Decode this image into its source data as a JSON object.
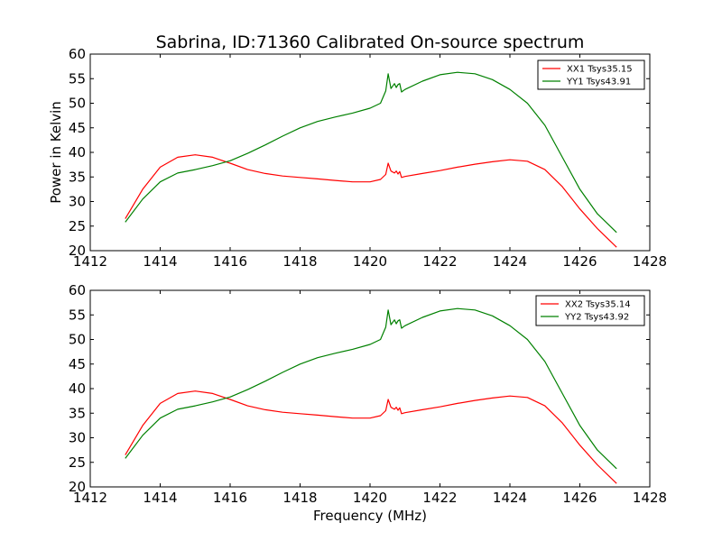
{
  "figure": {
    "title": "Sabrina, ID:71360 Calibrated On-source spectrum",
    "xlabel": "Frequency (MHz)",
    "ylabel": "Power in Kelvin"
  },
  "colors": {
    "xx": "#ff0000",
    "yy": "#008000",
    "axes": "#000000",
    "background": "#ffffff"
  },
  "chart_data": [
    {
      "type": "line",
      "title": "Sabrina, ID:71360 Calibrated On-source spectrum",
      "xlabel": "",
      "ylabel": "Power in Kelvin",
      "xlim": [
        1412,
        1428
      ],
      "ylim": [
        20,
        60
      ],
      "xticks": [
        "1412",
        "1414",
        "1416",
        "1418",
        "1420",
        "1422",
        "1424",
        "1426",
        "1428"
      ],
      "yticks": [
        "20",
        "25",
        "30",
        "35",
        "40",
        "45",
        "50",
        "55",
        "60"
      ],
      "grid": false,
      "legend_position": "top-right",
      "series": [
        {
          "name": "XX1 Tsys35.15",
          "color": "#ff0000",
          "x": [
            1413.0,
            1413.5,
            1414.0,
            1414.5,
            1415.0,
            1415.5,
            1416.0,
            1416.5,
            1417.0,
            1417.5,
            1418.0,
            1418.5,
            1419.0,
            1419.5,
            1420.0,
            1420.3,
            1420.45,
            1420.52,
            1420.6,
            1420.7,
            1420.75,
            1420.8,
            1420.85,
            1420.9,
            1421.0,
            1421.5,
            1422.0,
            1422.5,
            1423.0,
            1423.5,
            1424.0,
            1424.5,
            1425.0,
            1425.5,
            1426.0,
            1426.5,
            1427.05
          ],
          "y": [
            26.5,
            32.5,
            37.0,
            39.0,
            39.5,
            39.0,
            37.8,
            36.5,
            35.7,
            35.2,
            34.9,
            34.6,
            34.3,
            34.0,
            34.0,
            34.5,
            35.5,
            37.8,
            36.2,
            35.8,
            36.2,
            35.6,
            36.1,
            34.9,
            35.1,
            35.7,
            36.3,
            37.0,
            37.6,
            38.1,
            38.5,
            38.2,
            36.5,
            33.0,
            28.5,
            24.5,
            20.7
          ]
        },
        {
          "name": "YY1 Tsys43.91",
          "color": "#008000",
          "x": [
            1413.0,
            1413.5,
            1414.0,
            1414.5,
            1415.0,
            1415.5,
            1416.0,
            1416.5,
            1417.0,
            1417.5,
            1418.0,
            1418.5,
            1419.0,
            1419.5,
            1420.0,
            1420.3,
            1420.45,
            1420.52,
            1420.6,
            1420.7,
            1420.75,
            1420.8,
            1420.85,
            1420.9,
            1421.0,
            1421.5,
            1422.0,
            1422.5,
            1423.0,
            1423.5,
            1424.0,
            1424.5,
            1425.0,
            1425.5,
            1426.0,
            1426.5,
            1427.05
          ],
          "y": [
            25.8,
            30.5,
            34.0,
            35.8,
            36.5,
            37.3,
            38.3,
            39.8,
            41.5,
            43.3,
            45.0,
            46.3,
            47.2,
            48.0,
            49.0,
            50.0,
            52.5,
            56.0,
            53.0,
            54.0,
            53.2,
            53.8,
            54.0,
            52.3,
            52.8,
            54.5,
            55.8,
            56.3,
            56.0,
            54.8,
            52.8,
            50.0,
            45.5,
            39.0,
            32.5,
            27.5,
            23.7
          ]
        }
      ]
    },
    {
      "type": "line",
      "title": "",
      "xlabel": "Frequency (MHz)",
      "ylabel": "",
      "xlim": [
        1412,
        1428
      ],
      "ylim": [
        20,
        60
      ],
      "xticks": [
        "1412",
        "1414",
        "1416",
        "1418",
        "1420",
        "1422",
        "1424",
        "1426",
        "1428"
      ],
      "yticks": [
        "20",
        "25",
        "30",
        "35",
        "40",
        "45",
        "50",
        "55",
        "60"
      ],
      "grid": false,
      "legend_position": "top-right",
      "series": [
        {
          "name": "XX2 Tsys35.14",
          "color": "#ff0000",
          "x": [
            1413.0,
            1413.5,
            1414.0,
            1414.5,
            1415.0,
            1415.5,
            1416.0,
            1416.5,
            1417.0,
            1417.5,
            1418.0,
            1418.5,
            1419.0,
            1419.5,
            1420.0,
            1420.3,
            1420.45,
            1420.52,
            1420.6,
            1420.7,
            1420.75,
            1420.8,
            1420.85,
            1420.9,
            1421.0,
            1421.5,
            1422.0,
            1422.5,
            1423.0,
            1423.5,
            1424.0,
            1424.5,
            1425.0,
            1425.5,
            1426.0,
            1426.5,
            1427.05
          ],
          "y": [
            26.5,
            32.5,
            37.0,
            39.0,
            39.5,
            39.0,
            37.8,
            36.5,
            35.7,
            35.2,
            34.9,
            34.6,
            34.3,
            34.0,
            34.0,
            34.5,
            35.5,
            37.8,
            36.2,
            35.8,
            36.2,
            35.6,
            36.1,
            34.9,
            35.1,
            35.7,
            36.3,
            37.0,
            37.6,
            38.1,
            38.5,
            38.2,
            36.5,
            33.0,
            28.5,
            24.5,
            20.7
          ]
        },
        {
          "name": "YY2 Tsys43.92",
          "color": "#008000",
          "x": [
            1413.0,
            1413.5,
            1414.0,
            1414.5,
            1415.0,
            1415.5,
            1416.0,
            1416.5,
            1417.0,
            1417.5,
            1418.0,
            1418.5,
            1419.0,
            1419.5,
            1420.0,
            1420.3,
            1420.45,
            1420.52,
            1420.6,
            1420.7,
            1420.75,
            1420.8,
            1420.85,
            1420.9,
            1421.0,
            1421.5,
            1422.0,
            1422.5,
            1423.0,
            1423.5,
            1424.0,
            1424.5,
            1425.0,
            1425.5,
            1426.0,
            1426.5,
            1427.05
          ],
          "y": [
            25.8,
            30.5,
            34.0,
            35.8,
            36.5,
            37.3,
            38.3,
            39.8,
            41.5,
            43.3,
            45.0,
            46.3,
            47.2,
            48.0,
            49.0,
            50.0,
            52.5,
            56.0,
            53.0,
            54.0,
            53.2,
            53.8,
            54.0,
            52.3,
            52.8,
            54.5,
            55.8,
            56.3,
            56.0,
            54.8,
            52.8,
            50.0,
            45.5,
            39.0,
            32.5,
            27.5,
            23.7
          ]
        }
      ]
    }
  ]
}
